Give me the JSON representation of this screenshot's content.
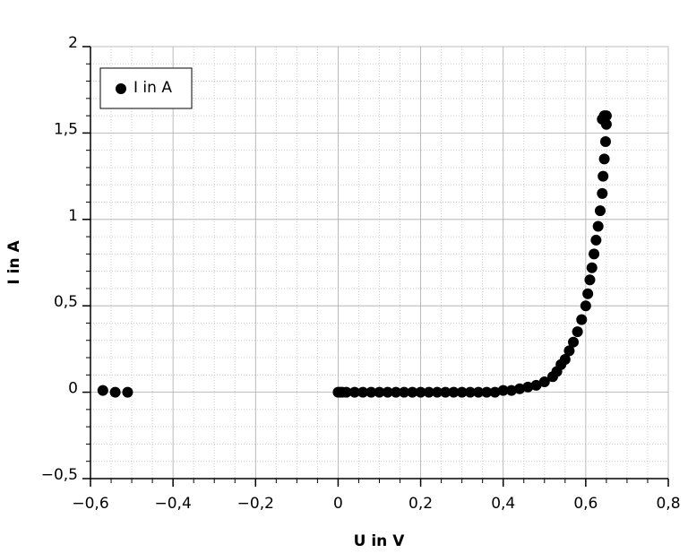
{
  "chart_data": {
    "type": "scatter",
    "x_label": "U in V",
    "y_label": "I in A",
    "x": [
      -0.57,
      -0.54,
      -0.51,
      0,
      0.005,
      0.01,
      0.02,
      0.04,
      0.06,
      0.08,
      0.1,
      0.12,
      0.14,
      0.16,
      0.18,
      0.2,
      0.22,
      0.24,
      0.26,
      0.28,
      0.3,
      0.32,
      0.34,
      0.36,
      0.38,
      0.4,
      0.42,
      0.44,
      0.46,
      0.48,
      0.5,
      0.52,
      0.53,
      0.54,
      0.55,
      0.56,
      0.57,
      0.58,
      0.59,
      0.6,
      0.605,
      0.61,
      0.615,
      0.62,
      0.625,
      0.63,
      0.635,
      0.64,
      0.642,
      0.645,
      0.648,
      0.65,
      0.65,
      0.645,
      0.64
    ],
    "series": [
      {
        "name": "I in A",
        "color": "#000000",
        "values": [
          0.01,
          0,
          0,
          0,
          0,
          0,
          0,
          0,
          0,
          0,
          0,
          0,
          0,
          0,
          0,
          0,
          0,
          0,
          0,
          0,
          0,
          0,
          0,
          0,
          0,
          0.01,
          0.01,
          0.02,
          0.03,
          0.04,
          0.06,
          0.09,
          0.12,
          0.16,
          0.19,
          0.24,
          0.29,
          0.35,
          0.42,
          0.5,
          0.57,
          0.65,
          0.72,
          0.8,
          0.88,
          0.96,
          1.05,
          1.15,
          1.25,
          1.35,
          1.45,
          1.55,
          1.6,
          1.6,
          1.58
        ]
      }
    ],
    "xlim": [
      -0.6,
      0.8
    ],
    "xticks": [
      {
        "value": -0.6,
        "label": "−0,6"
      },
      {
        "value": -0.4,
        "label": "−0,4"
      },
      {
        "value": -0.2,
        "label": "−0,2"
      },
      0,
      {
        "value": 0.2,
        "label": "0,2"
      },
      {
        "value": 0.4,
        "label": "0,4"
      },
      {
        "value": 0.6,
        "label": "0,6"
      },
      {
        "value": 0.8,
        "label": "0,8"
      }
    ],
    "ylim": [
      -0.5,
      2
    ],
    "yticks": [
      {
        "value": -0.5,
        "label": "−0,5"
      },
      0,
      {
        "value": 0.5,
        "label": "0,5"
      },
      1,
      {
        "value": 1.5,
        "label": "1,5"
      },
      2
    ],
    "grid": true,
    "minor_grid": true,
    "legend": "upper left"
  }
}
